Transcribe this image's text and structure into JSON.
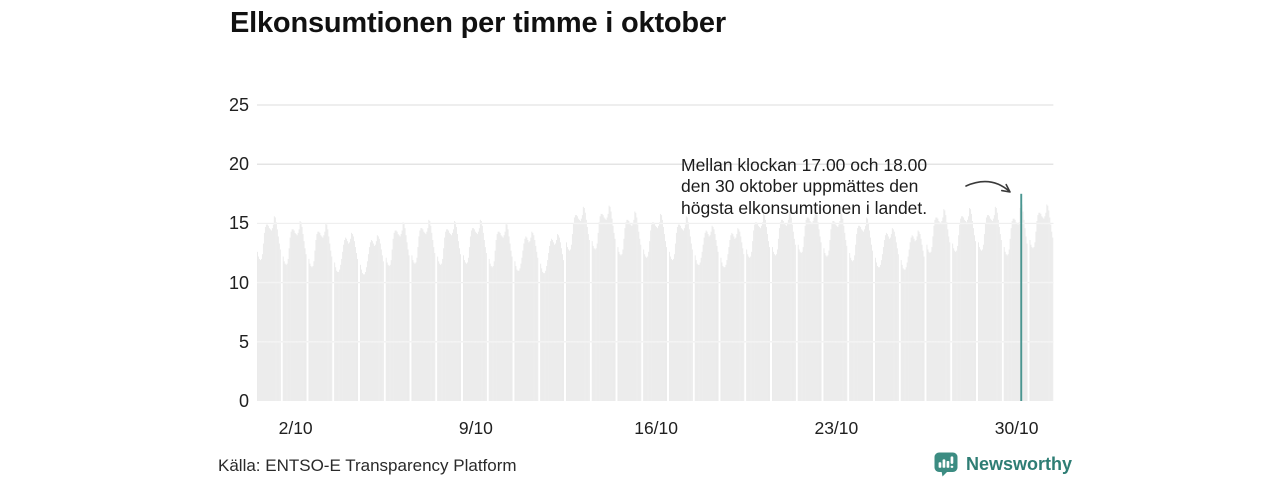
{
  "title": "Elkonsumtionen per timme i oktober",
  "annotation": {
    "lines": [
      "Mellan klockan 17.00 och 18.00",
      "den 30 oktober uppmättes den",
      "högsta elkonsumtionen i landet."
    ]
  },
  "source": "Källa: ENTSO-E Transparency Platform",
  "branding": {
    "name": "Newsworthy",
    "icon": "newsworthy-chart-bubble-icon",
    "color": "#2e7d74",
    "icon_color": "#3c8c82"
  },
  "chart_data": {
    "type": "bar",
    "title": "Elkonsumtionen per timme i oktober",
    "xlabel": "",
    "ylabel": "",
    "ylim": [
      0,
      26
    ],
    "grid": true,
    "yticks": [
      0,
      5,
      10,
      15,
      20,
      25
    ],
    "xticks": [
      {
        "label": "2/10",
        "day": 2
      },
      {
        "label": "9/10",
        "day": 9
      },
      {
        "label": "16/10",
        "day": 16
      },
      {
        "label": "23/10",
        "day": 23
      },
      {
        "label": "30/10",
        "day": 30
      }
    ],
    "colors": {
      "bar": "#e9e9e9",
      "gridline": "#dcdcdc",
      "grid_over_bars": "rgba(255,255,255,0.55)",
      "highlight": "#4a9691",
      "arrow": "#3a3a3a"
    },
    "highlight": {
      "date": "30/10",
      "day_index": 30,
      "hour": 17,
      "value": 17.5,
      "window": "17.00–18.00"
    },
    "days": [
      {
        "date": "1/10",
        "values": [
          12.6,
          12.2,
          12.0,
          11.9,
          12.0,
          12.4,
          13.3,
          14.2,
          14.7,
          14.9,
          14.9,
          14.8,
          14.6,
          14.5,
          14.4,
          14.6,
          14.9,
          15.6,
          15.5,
          15.1,
          14.5,
          13.9,
          13.3,
          12.8
        ]
      },
      {
        "date": "2/10",
        "values": [
          12.2,
          11.8,
          11.6,
          11.5,
          11.6,
          12.0,
          12.9,
          13.8,
          14.3,
          14.5,
          14.5,
          14.4,
          14.2,
          14.1,
          14.0,
          14.2,
          14.5,
          15.2,
          15.1,
          14.7,
          14.1,
          13.5,
          12.9,
          12.4
        ]
      },
      {
        "date": "3/10",
        "values": [
          12.0,
          11.6,
          11.4,
          11.3,
          11.4,
          11.8,
          12.7,
          13.6,
          14.1,
          14.3,
          14.3,
          14.2,
          14.0,
          13.9,
          13.8,
          14.0,
          14.3,
          15.0,
          14.9,
          14.5,
          13.9,
          13.3,
          12.7,
          12.2
        ]
      },
      {
        "date": "4/10",
        "values": [
          11.7,
          11.3,
          11.0,
          10.9,
          10.9,
          11.1,
          11.5,
          12.0,
          12.6,
          13.2,
          13.6,
          13.8,
          13.7,
          13.5,
          13.3,
          13.4,
          13.7,
          14.2,
          14.1,
          13.9,
          13.5,
          13.0,
          12.5,
          12.0
        ]
      },
      {
        "date": "5/10",
        "values": [
          11.5,
          11.1,
          10.8,
          10.7,
          10.7,
          10.9,
          11.3,
          11.8,
          12.4,
          13.0,
          13.4,
          13.6,
          13.5,
          13.3,
          13.1,
          13.2,
          13.5,
          14.0,
          13.9,
          13.7,
          13.3,
          12.8,
          12.3,
          11.8
        ]
      },
      {
        "date": "6/10",
        "values": [
          12.1,
          11.7,
          11.5,
          11.4,
          11.5,
          11.9,
          12.8,
          13.7,
          14.2,
          14.4,
          14.4,
          14.3,
          14.1,
          14.0,
          13.9,
          14.1,
          14.4,
          15.1,
          15.0,
          14.6,
          14.0,
          13.4,
          12.8,
          12.3
        ]
      },
      {
        "date": "7/10",
        "values": [
          12.3,
          11.9,
          11.7,
          11.6,
          11.7,
          12.1,
          13.0,
          13.9,
          14.4,
          14.6,
          14.6,
          14.5,
          14.3,
          14.2,
          14.1,
          14.3,
          14.6,
          15.3,
          15.2,
          14.8,
          14.2,
          13.6,
          13.0,
          12.5
        ]
      },
      {
        "date": "8/10",
        "values": [
          12.2,
          11.8,
          11.6,
          11.5,
          11.6,
          12.0,
          12.9,
          13.8,
          14.3,
          14.5,
          14.5,
          14.4,
          14.2,
          14.1,
          14.0,
          14.2,
          14.5,
          15.2,
          15.1,
          14.7,
          14.1,
          13.5,
          12.9,
          12.4
        ]
      },
      {
        "date": "9/10",
        "values": [
          12.3,
          11.9,
          11.7,
          11.6,
          11.7,
          12.1,
          13.0,
          13.9,
          14.4,
          14.6,
          14.6,
          14.5,
          14.3,
          14.2,
          14.1,
          14.3,
          14.6,
          15.3,
          15.2,
          14.8,
          14.2,
          13.6,
          13.0,
          12.5
        ]
      },
      {
        "date": "10/10",
        "values": [
          12.0,
          11.6,
          11.4,
          11.3,
          11.4,
          11.8,
          12.7,
          13.6,
          14.1,
          14.3,
          14.3,
          14.2,
          14.0,
          13.9,
          13.8,
          14.0,
          14.3,
          15.0,
          14.9,
          14.5,
          13.9,
          13.3,
          12.7,
          12.2
        ]
      },
      {
        "date": "11/10",
        "values": [
          11.8,
          11.4,
          11.1,
          11.0,
          11.0,
          11.2,
          11.6,
          12.1,
          12.7,
          13.3,
          13.7,
          13.9,
          13.8,
          13.6,
          13.4,
          13.5,
          13.8,
          14.3,
          14.2,
          14.0,
          13.6,
          13.1,
          12.6,
          12.1
        ]
      },
      {
        "date": "12/10",
        "values": [
          11.6,
          11.2,
          10.9,
          10.8,
          10.8,
          11.0,
          11.4,
          11.9,
          12.5,
          13.1,
          13.5,
          13.7,
          13.6,
          13.4,
          13.2,
          13.3,
          13.6,
          14.1,
          14.0,
          13.8,
          13.4,
          12.9,
          12.4,
          11.9
        ]
      },
      {
        "date": "13/10",
        "values": [
          13.4,
          13.0,
          12.8,
          12.7,
          12.8,
          13.2,
          14.1,
          15.0,
          15.5,
          15.7,
          15.7,
          15.6,
          15.4,
          15.3,
          15.2,
          15.4,
          15.7,
          16.4,
          16.3,
          15.9,
          15.3,
          14.7,
          14.1,
          13.6
        ]
      },
      {
        "date": "14/10",
        "values": [
          13.5,
          13.1,
          12.9,
          12.8,
          12.9,
          13.3,
          14.2,
          15.1,
          15.6,
          15.8,
          15.8,
          15.7,
          15.5,
          15.4,
          15.3,
          15.5,
          15.8,
          16.5,
          16.4,
          16.0,
          15.4,
          14.8,
          14.2,
          13.7
        ]
      },
      {
        "date": "15/10",
        "values": [
          13.0,
          12.6,
          12.4,
          12.3,
          12.4,
          12.8,
          13.7,
          14.6,
          15.1,
          15.3,
          15.3,
          15.2,
          15.0,
          14.9,
          14.8,
          15.0,
          15.3,
          16.0,
          15.9,
          15.5,
          14.9,
          14.3,
          13.7,
          13.2
        ]
      },
      {
        "date": "16/10",
        "values": [
          12.8,
          12.4,
          12.2,
          12.1,
          12.2,
          12.6,
          13.5,
          14.4,
          14.9,
          15.1,
          15.1,
          15.0,
          14.8,
          14.7,
          14.6,
          14.8,
          15.1,
          15.8,
          15.7,
          15.3,
          14.7,
          14.1,
          13.5,
          13.0
        ]
      },
      {
        "date": "17/10",
        "values": [
          12.6,
          12.2,
          12.0,
          11.9,
          12.0,
          12.4,
          13.3,
          14.2,
          14.7,
          14.9,
          14.9,
          14.8,
          14.6,
          14.5,
          14.4,
          14.6,
          14.9,
          15.6,
          15.5,
          15.1,
          14.5,
          13.9,
          13.3,
          12.8
        ]
      },
      {
        "date": "18/10",
        "values": [
          12.3,
          11.9,
          11.6,
          11.5,
          11.5,
          11.7,
          12.1,
          12.6,
          13.2,
          13.8,
          14.2,
          14.4,
          14.3,
          14.1,
          13.9,
          14.0,
          14.3,
          14.8,
          14.7,
          14.5,
          14.1,
          13.6,
          13.1,
          12.6
        ]
      },
      {
        "date": "19/10",
        "values": [
          12.1,
          11.7,
          11.4,
          11.3,
          11.3,
          11.5,
          11.9,
          12.4,
          13.0,
          13.6,
          14.0,
          14.2,
          14.1,
          13.9,
          13.7,
          13.8,
          14.1,
          14.6,
          14.5,
          14.3,
          13.9,
          13.4,
          12.9,
          12.4
        ]
      },
      {
        "date": "20/10",
        "values": [
          12.8,
          12.4,
          12.2,
          12.1,
          12.2,
          12.6,
          13.5,
          14.4,
          14.9,
          15.1,
          15.1,
          15.0,
          14.8,
          14.7,
          14.6,
          14.8,
          15.1,
          15.8,
          15.7,
          15.3,
          14.7,
          14.1,
          13.5,
          13.0
        ]
      },
      {
        "date": "21/10",
        "values": [
          13.0,
          12.6,
          12.4,
          12.3,
          12.4,
          12.8,
          13.7,
          14.6,
          15.1,
          15.3,
          15.3,
          15.2,
          15.0,
          14.9,
          14.8,
          15.0,
          15.3,
          16.0,
          15.9,
          15.5,
          14.9,
          14.3,
          13.7,
          13.2
        ]
      },
      {
        "date": "22/10",
        "values": [
          13.2,
          12.8,
          12.6,
          12.5,
          12.6,
          13.0,
          13.9,
          14.8,
          15.3,
          15.5,
          15.5,
          15.4,
          15.2,
          15.1,
          15.0,
          15.2,
          15.5,
          16.2,
          16.1,
          15.7,
          15.1,
          14.5,
          13.9,
          13.4
        ]
      },
      {
        "date": "23/10",
        "values": [
          12.9,
          12.5,
          12.3,
          12.2,
          12.3,
          12.7,
          13.6,
          14.5,
          15.0,
          15.2,
          15.2,
          15.1,
          14.9,
          14.8,
          14.7,
          14.9,
          15.2,
          15.9,
          15.8,
          15.4,
          14.8,
          14.2,
          13.6,
          13.1
        ]
      },
      {
        "date": "24/10",
        "values": [
          12.5,
          12.1,
          11.9,
          11.8,
          11.9,
          12.3,
          13.2,
          14.1,
          14.6,
          14.8,
          14.8,
          14.7,
          14.5,
          14.4,
          14.3,
          14.5,
          14.8,
          15.5,
          15.4,
          15.0,
          14.4,
          13.8,
          13.2,
          12.7
        ]
      },
      {
        "date": "25/10",
        "values": [
          12.1,
          11.7,
          11.4,
          11.3,
          11.3,
          11.5,
          11.9,
          12.4,
          13.0,
          13.6,
          14.0,
          14.2,
          14.1,
          13.9,
          13.7,
          13.8,
          14.1,
          14.6,
          14.5,
          14.3,
          13.9,
          13.4,
          12.9,
          12.4
        ]
      },
      {
        "date": "26/10",
        "values": [
          11.9,
          11.5,
          11.2,
          11.1,
          11.1,
          11.3,
          11.7,
          12.2,
          12.8,
          13.4,
          13.8,
          14.0,
          13.9,
          13.7,
          13.5,
          13.6,
          13.9,
          14.4,
          14.3,
          14.1,
          13.7,
          13.2,
          12.7,
          12.2
        ]
      },
      {
        "date": "27/10",
        "values": [
          13.2,
          12.8,
          12.6,
          12.5,
          12.6,
          13.0,
          13.9,
          14.8,
          15.3,
          15.5,
          15.5,
          15.4,
          15.2,
          15.1,
          15.0,
          15.2,
          15.5,
          16.2,
          16.1,
          15.7,
          15.1,
          14.5,
          13.9,
          13.4
        ]
      },
      {
        "date": "28/10",
        "values": [
          13.3,
          12.9,
          12.7,
          12.6,
          12.7,
          13.1,
          14.0,
          14.9,
          15.4,
          15.6,
          15.6,
          15.5,
          15.3,
          15.2,
          15.1,
          15.3,
          15.6,
          16.3,
          16.2,
          15.8,
          15.2,
          14.6,
          14.0,
          13.5
        ]
      },
      {
        "date": "29/10",
        "values": [
          13.4,
          13.0,
          12.8,
          12.7,
          12.8,
          13.2,
          14.1,
          15.0,
          15.5,
          15.7,
          15.7,
          15.6,
          15.4,
          15.3,
          15.2,
          15.4,
          15.7,
          16.4,
          16.3,
          15.9,
          15.3,
          14.7,
          14.1,
          13.6
        ]
      },
      {
        "date": "30/10",
        "values": [
          13.0,
          12.6,
          12.4,
          12.3,
          12.4,
          12.8,
          13.7,
          14.6,
          15.2,
          15.4,
          15.4,
          15.3,
          15.1,
          15.0,
          14.9,
          15.1,
          16.3,
          17.5,
          16.6,
          16.0,
          15.3,
          14.6,
          13.9,
          13.3
        ]
      },
      {
        "date": "31/10",
        "values": [
          13.6,
          13.2,
          13.0,
          12.9,
          13.0,
          13.4,
          14.3,
          15.2,
          15.7,
          15.9,
          15.9,
          15.8,
          15.6,
          15.5,
          15.4,
          15.6,
          15.9,
          16.6,
          16.5,
          16.1,
          15.5,
          14.9,
          14.3,
          13.8
        ]
      }
    ]
  }
}
